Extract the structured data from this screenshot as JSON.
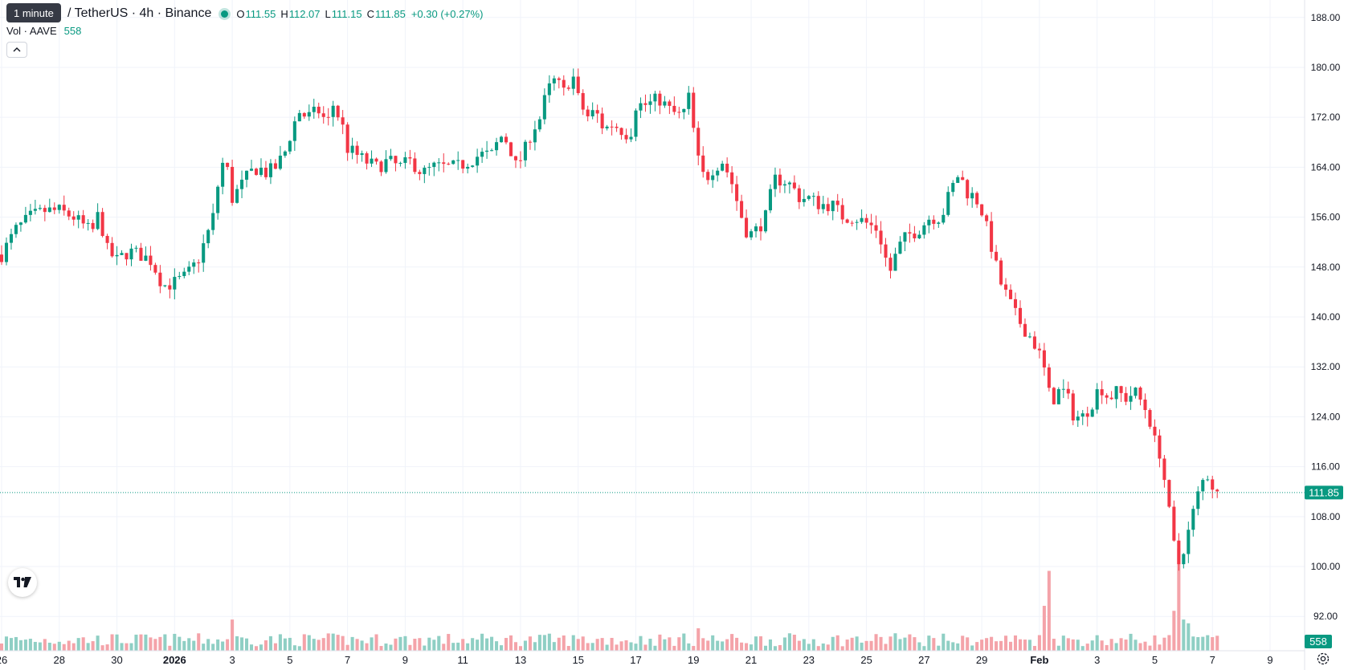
{
  "legend": {
    "tooltip": "1 minute",
    "symbol": "/ TetherUS · 4h · Binance",
    "ohlc": [
      {
        "key": "O",
        "value": "111.55"
      },
      {
        "key": "H",
        "value": "112.07"
      },
      {
        "key": "L",
        "value": "111.15"
      },
      {
        "key": "C",
        "value": "111.85"
      },
      {
        "key": "",
        "value": "+0.30 (+0.27%)"
      }
    ],
    "volume_label": "Vol · AAVE",
    "volume_value": "558"
  },
  "colors": {
    "up": "#089981",
    "down": "#f23645",
    "up_volume": "#8fcfc4",
    "down_volume": "#f4a3a9",
    "grid": "#f0f3fa",
    "text": "#131722"
  },
  "chart_data": {
    "type": "candlestick",
    "interval": "4h",
    "y_axis": {
      "ticks": [
        188,
        180,
        172,
        164,
        156,
        148,
        140,
        132,
        124,
        116,
        108,
        100,
        92
      ],
      "labels": [
        "188.00",
        "180.00",
        "172.00",
        "164.00",
        "156.00",
        "148.00",
        "140.00",
        "132.00",
        "124.00",
        "116.00",
        "108.00",
        "100.00",
        "92.00"
      ],
      "ylim": [
        86.5,
        190.8
      ]
    },
    "x_axis": {
      "labels": [
        "26",
        "28",
        "30",
        "2026",
        "3",
        "5",
        "7",
        "9",
        "11",
        "13",
        "15",
        "17",
        "19",
        "21",
        "23",
        "25",
        "27",
        "29",
        "Feb",
        "3",
        "5",
        "7",
        "9"
      ],
      "label_days": [
        -6,
        -4,
        -2,
        0,
        2,
        4,
        6,
        8,
        10,
        12,
        14,
        16,
        18,
        20,
        22,
        24,
        26,
        28,
        30,
        32,
        34,
        36,
        38
      ],
      "bold": [
        "2026",
        "Feb"
      ]
    },
    "current_price": "111.85",
    "current_volume": "558",
    "price_path": [
      [
        -6.0,
        150
      ],
      [
        -5.5,
        154
      ],
      [
        -5.0,
        156
      ],
      [
        -4.5,
        157
      ],
      [
        -4.0,
        157
      ],
      [
        -3.5,
        156
      ],
      [
        -3.0,
        154
      ],
      [
        -2.9,
        153
      ],
      [
        -2.6,
        157
      ],
      [
        -2.4,
        151
      ],
      [
        -2.0,
        149
      ],
      [
        -1.6,
        150.5
      ],
      [
        -1.2,
        150
      ],
      [
        -0.8,
        149
      ],
      [
        -0.4,
        145
      ],
      [
        0.0,
        145.5
      ],
      [
        0.4,
        146.5
      ],
      [
        0.8,
        149
      ],
      [
        1.2,
        154
      ],
      [
        1.4,
        157
      ],
      [
        1.6,
        165
      ],
      [
        1.9,
        163
      ],
      [
        2.0,
        159
      ],
      [
        2.3,
        161
      ],
      [
        2.6,
        163
      ],
      [
        2.9,
        164
      ],
      [
        3.2,
        163
      ],
      [
        3.5,
        164
      ],
      [
        3.8,
        166
      ],
      [
        4.0,
        169
      ],
      [
        4.3,
        173
      ],
      [
        4.6,
        172
      ],
      [
        5.0,
        173
      ],
      [
        5.3,
        171
      ],
      [
        5.5,
        174
      ],
      [
        5.8,
        171
      ],
      [
        6.0,
        167
      ],
      [
        6.3,
        166
      ],
      [
        6.6,
        165
      ],
      [
        7.0,
        164
      ],
      [
        7.4,
        165
      ],
      [
        7.8,
        164
      ],
      [
        8.2,
        165
      ],
      [
        8.6,
        163
      ],
      [
        9.0,
        164
      ],
      [
        9.4,
        164
      ],
      [
        9.8,
        164
      ],
      [
        10.2,
        165
      ],
      [
        10.6,
        166
      ],
      [
        11.0,
        166
      ],
      [
        11.3,
        169
      ],
      [
        11.6,
        168
      ],
      [
        11.8,
        164
      ],
      [
        12.1,
        166
      ],
      [
        12.4,
        170
      ],
      [
        12.7,
        172
      ],
      [
        12.9,
        176
      ],
      [
        13.2,
        178
      ],
      [
        13.5,
        176
      ],
      [
        13.8,
        179
      ],
      [
        14.0,
        175
      ],
      [
        14.3,
        172
      ],
      [
        14.6,
        173
      ],
      [
        14.9,
        170
      ],
      [
        15.2,
        171
      ],
      [
        15.5,
        170
      ],
      [
        15.8,
        169
      ],
      [
        16.0,
        174
      ],
      [
        16.4,
        174
      ],
      [
        16.8,
        175
      ],
      [
        17.2,
        173
      ],
      [
        17.6,
        172
      ],
      [
        17.9,
        176
      ],
      [
        18.0,
        170
      ],
      [
        18.2,
        164
      ],
      [
        18.4,
        162
      ],
      [
        18.7,
        164
      ],
      [
        19.0,
        165
      ],
      [
        19.3,
        162
      ],
      [
        19.6,
        157
      ],
      [
        19.9,
        153
      ],
      [
        20.2,
        154
      ],
      [
        20.5,
        156
      ],
      [
        20.8,
        162
      ],
      [
        21.1,
        162
      ],
      [
        21.4,
        161
      ],
      [
        21.7,
        159
      ],
      [
        22.0,
        159
      ],
      [
        22.4,
        158
      ],
      [
        22.8,
        158
      ],
      [
        23.2,
        156
      ],
      [
        23.6,
        156
      ],
      [
        24.0,
        155
      ],
      [
        24.4,
        154
      ],
      [
        24.8,
        147
      ],
      [
        25.1,
        151
      ],
      [
        25.4,
        153
      ],
      [
        25.8,
        154
      ],
      [
        26.2,
        156
      ],
      [
        26.6,
        156
      ],
      [
        26.9,
        160
      ],
      [
        27.2,
        163
      ],
      [
        27.5,
        160
      ],
      [
        27.8,
        159
      ],
      [
        28.0,
        157
      ],
      [
        28.3,
        152
      ],
      [
        28.6,
        146
      ],
      [
        28.9,
        143
      ],
      [
        29.2,
        140
      ],
      [
        29.5,
        138
      ],
      [
        29.8,
        136
      ],
      [
        30.0,
        134
      ],
      [
        30.2,
        131
      ],
      [
        30.4,
        126
      ],
      [
        30.6,
        128
      ],
      [
        30.9,
        128
      ],
      [
        31.2,
        124
      ],
      [
        31.5,
        124
      ],
      [
        31.8,
        126
      ],
      [
        32.1,
        129
      ],
      [
        32.4,
        127
      ],
      [
        32.7,
        128
      ],
      [
        33.0,
        127
      ],
      [
        33.3,
        128
      ],
      [
        33.6,
        126
      ],
      [
        33.8,
        124
      ],
      [
        34.0,
        120
      ],
      [
        34.2,
        118
      ],
      [
        34.4,
        112
      ],
      [
        34.6,
        105
      ],
      [
        34.8,
        100
      ],
      [
        35.0,
        103
      ],
      [
        35.2,
        106
      ],
      [
        35.4,
        110
      ],
      [
        35.6,
        113
      ],
      [
        35.8,
        115
      ],
      [
        36.0,
        113
      ],
      [
        36.2,
        111.85
      ]
    ],
    "volume_spikes": [
      [
        30.4,
        3200
      ],
      [
        30.2,
        1800
      ],
      [
        34.8,
        4100
      ],
      [
        34.6,
        1600
      ],
      [
        35.0,
        1250
      ],
      [
        35.2,
        1100
      ],
      [
        18.1,
        900
      ],
      [
        27.3,
        600
      ],
      [
        2.0,
        1250
      ],
      [
        25.0,
        700
      ]
    ]
  }
}
